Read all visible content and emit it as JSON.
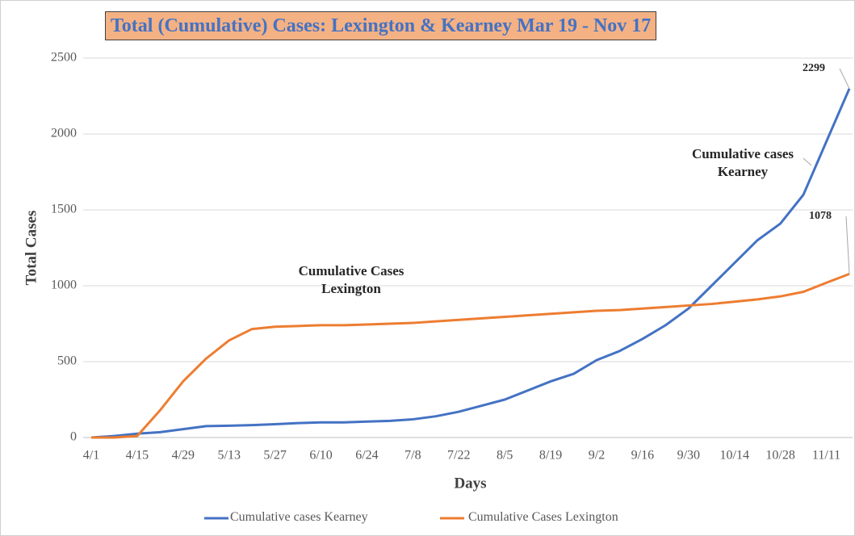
{
  "chart_data": {
    "type": "line",
    "title": "Total (Cumulative) Cases: Lexington & Kearney Mar 19 - Nov 17",
    "x_label": "Days",
    "y_label": "Total Cases",
    "categories": [
      "4/1",
      null,
      "4/15",
      null,
      "4/29",
      null,
      "5/13",
      null,
      "5/27",
      null,
      "6/10",
      null,
      "6/24",
      null,
      "7/8",
      null,
      "7/22",
      null,
      "8/5",
      null,
      "8/19",
      null,
      "9/2",
      null,
      "9/16",
      null,
      "9/30",
      null,
      "10/14",
      null,
      "10/28",
      null,
      "11/11",
      null
    ],
    "series": [
      {
        "name": "Cumulative cases Kearney",
        "color": "#4472c4",
        "values": [
          0,
          10,
          25,
          35,
          55,
          75,
          78,
          82,
          88,
          95,
          100,
          100,
          105,
          110,
          120,
          140,
          170,
          210,
          250,
          310,
          370,
          420,
          510,
          570,
          650,
          740,
          850,
          1000,
          1150,
          1300,
          1410,
          1600,
          1950,
          2299
        ]
      },
      {
        "name": "Cumulative Cases Lexington",
        "color": "#ed7d31",
        "values": [
          0,
          0,
          10,
          180,
          370,
          520,
          640,
          715,
          730,
          735,
          740,
          740,
          745,
          750,
          755,
          765,
          775,
          785,
          795,
          805,
          815,
          825,
          835,
          840,
          850,
          860,
          870,
          880,
          895,
          910,
          930,
          960,
          1020,
          1078
        ]
      }
    ],
    "ylim": [
      0,
      2500
    ],
    "yticks": [
      0,
      500,
      1000,
      1500,
      2000,
      2500
    ],
    "grid": true,
    "legend": "bottom"
  }
}
